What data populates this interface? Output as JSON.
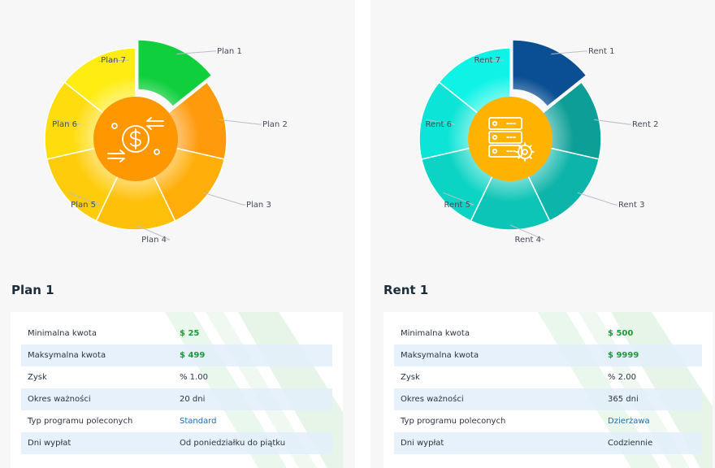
{
  "plans": [
    {
      "id": "plan",
      "title": "Plan 1",
      "segments": [
        "Plan 1",
        "Plan 2",
        "Plan 3",
        "Plan 4",
        "Plan 5",
        "Plan 6",
        "Plan 7"
      ],
      "segment_colors": [
        "#0fcf3c",
        "#ff9a0c",
        "#ffae0a",
        "#ffc00a",
        "#ffcc0c",
        "#ffdc0e",
        "#ffec10"
      ],
      "center_color": "#ff9800",
      "icon": "dollar-exchange-icon",
      "rows": [
        {
          "label": "Minimalna kwota",
          "value": "$ 25",
          "style": "green"
        },
        {
          "label": "Maksymalna kwota",
          "value": "$ 499",
          "style": "green"
        },
        {
          "label": "Zysk",
          "value": "% 1.00",
          "style": "plain"
        },
        {
          "label": "Okres ważności",
          "value": "20 dni",
          "style": "plain"
        },
        {
          "label": "Typ programu poleconych",
          "value": "Standard",
          "style": "link"
        },
        {
          "label": "Dni wypłat",
          "value": "Od poniedziałku do piątku",
          "style": "plain"
        }
      ]
    },
    {
      "id": "rent",
      "title": "Rent 1",
      "segments": [
        "Rent 1",
        "Rent 2",
        "Rent 3",
        "Rent 4",
        "Rent 5",
        "Rent 6",
        "Rent 7"
      ],
      "segment_colors": [
        "#0a4f93",
        "#0d9f97",
        "#0db4a9",
        "#0cc5b6",
        "#0bd4c4",
        "#0be4d6",
        "#0ef3e6"
      ],
      "center_color": "#ffb300",
      "icon": "server-settings-icon",
      "rows": [
        {
          "label": "Minimalna kwota",
          "value": "$ 500",
          "style": "green"
        },
        {
          "label": "Maksymalna kwota",
          "value": "$ 9999",
          "style": "green"
        },
        {
          "label": "Zysk",
          "value": "% 2.00",
          "style": "plain"
        },
        {
          "label": "Okres ważności",
          "value": "365 dni",
          "style": "plain"
        },
        {
          "label": "Typ programu poleconych",
          "value": "Dzierżawa",
          "style": "link"
        },
        {
          "label": "Dni wypłat",
          "value": "Codziennie",
          "style": "plain"
        }
      ]
    }
  ]
}
